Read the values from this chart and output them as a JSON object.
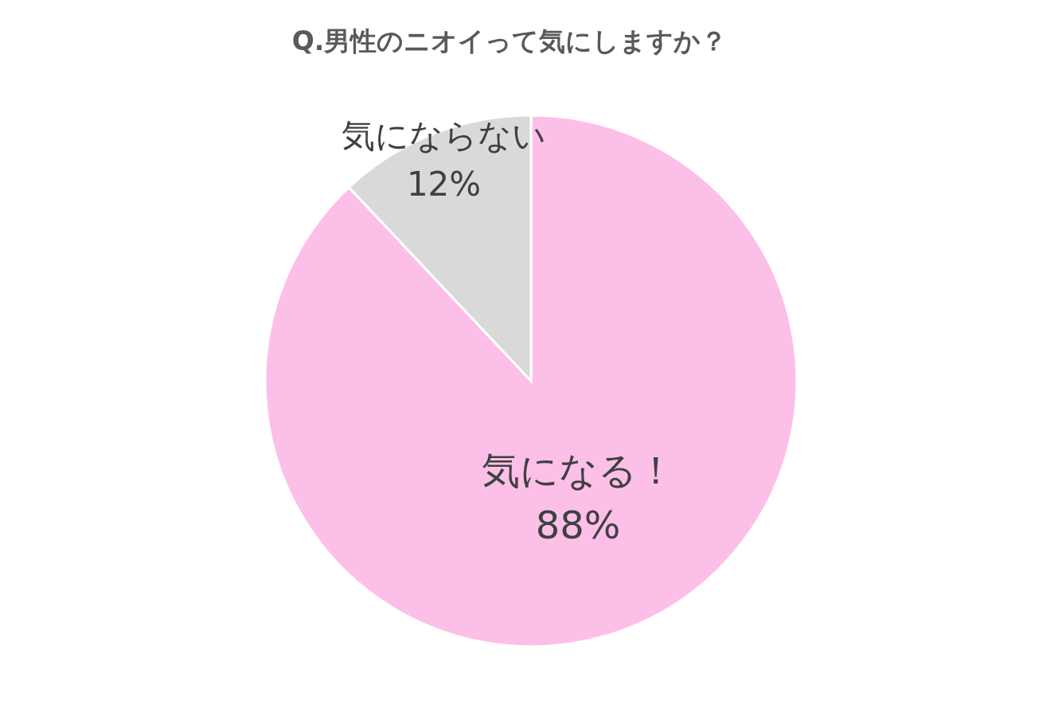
{
  "chart_data": {
    "type": "pie",
    "title": "Q.男性のニオイって気にしますか？",
    "categories": [
      "気になる！",
      "気にならない"
    ],
    "values": [
      88,
      12
    ],
    "colors": [
      "#fcc0e8",
      "#d9d9d9"
    ],
    "value_labels": [
      "88%",
      "12%"
    ],
    "legend": false
  }
}
